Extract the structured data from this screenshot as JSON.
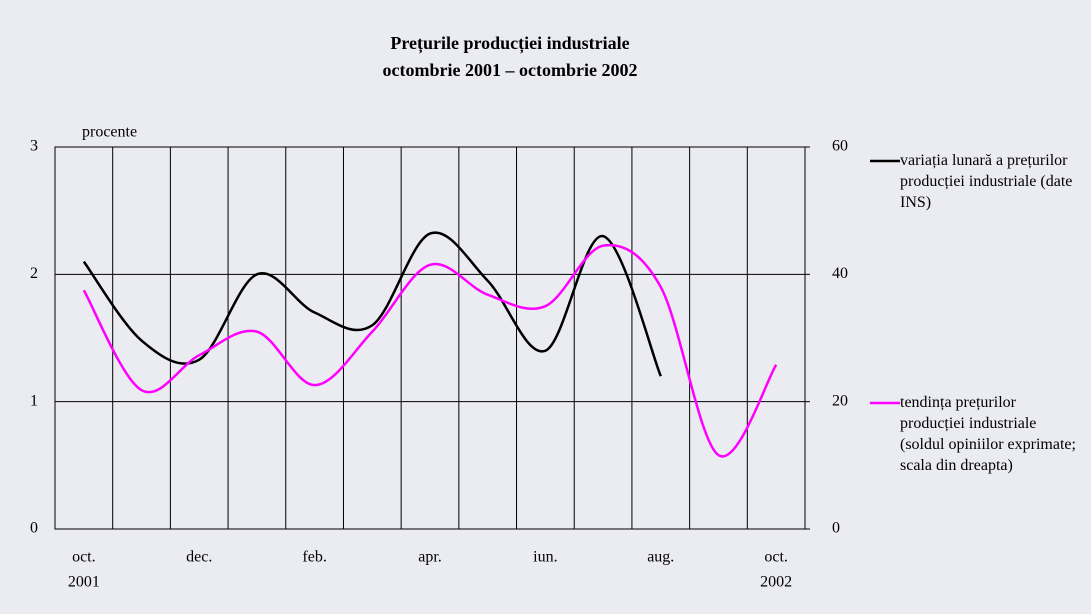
{
  "chart_data": {
    "type": "line",
    "title": "Prețurile producției industriale",
    "subtitle": "octombrie 2001 – octombrie 2002",
    "y_label": "procente",
    "categories": [
      "oct.",
      null,
      "dec.",
      null,
      "feb.",
      null,
      "apr.",
      null,
      "iun.",
      null,
      "aug.",
      null,
      "oct."
    ],
    "category_years": [
      "2001",
      null,
      null,
      null,
      null,
      null,
      null,
      null,
      null,
      null,
      null,
      null,
      "2002"
    ],
    "series": [
      {
        "name": "variația lunară a prețurilor producției industriale (date INS)",
        "color": "#000000",
        "axis": "y",
        "values": [
          2.1,
          1.48,
          1.33,
          2.0,
          1.7,
          1.6,
          2.32,
          1.95,
          1.4,
          2.3,
          1.2,
          null,
          null
        ]
      },
      {
        "name": "tendința prețurilor producției industriale (soldul opiniilor exprimate; scala din dreapta)",
        "color": "#ff00ff",
        "axis": "y2",
        "values": [
          37.5,
          21.8,
          27.3,
          31,
          22.6,
          31,
          41.5,
          36.8,
          35,
          44.5,
          38,
          11.6,
          25.8
        ]
      }
    ],
    "ylim": [
      0,
      3
    ],
    "yticks": [
      0,
      1,
      2,
      3
    ],
    "y2lim": [
      0,
      60
    ],
    "y2ticks": [
      0,
      20,
      40,
      60
    ],
    "grid": true
  }
}
